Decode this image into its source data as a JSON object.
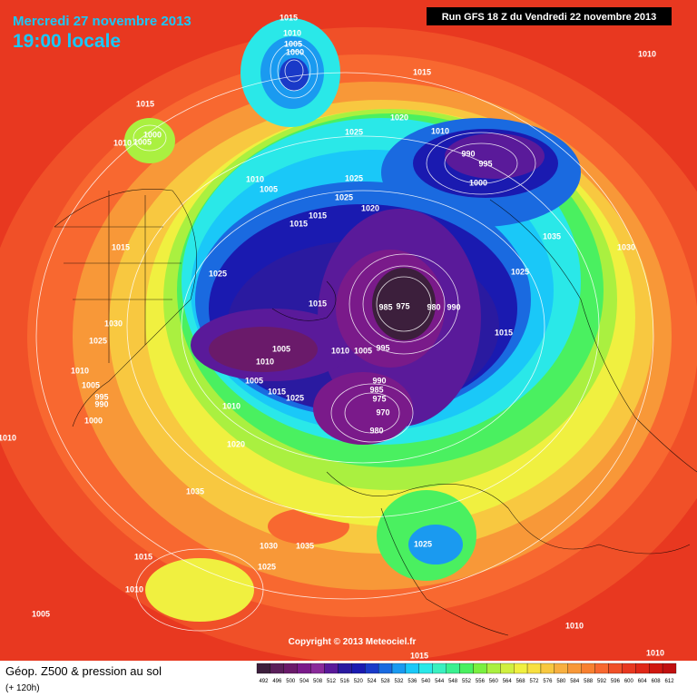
{
  "header": {
    "date": "Mercredi 27 novembre 2013",
    "time": "19:00 locale",
    "run": "Run GFS 18 Z du Vendredi 22 novembre 2013"
  },
  "copyright": "Copyright © 2013 Meteociel.fr",
  "footer": {
    "title": "Géop. Z500 & pression au sol",
    "subtitle": "(+ 120h)"
  },
  "isobar_labels": [
    1015,
    1010,
    1005,
    1000,
    1015,
    1010,
    1015,
    1000,
    1010,
    1005,
    1020,
    1025,
    1010,
    990,
    995,
    1000,
    1010,
    1005,
    1025,
    1025,
    1020,
    1015,
    1015,
    1035,
    1030,
    1015,
    1025,
    1025,
    1015,
    985,
    975,
    980,
    990,
    1030,
    1025,
    1015,
    1005,
    1010,
    1005,
    995,
    1010,
    1010,
    1005,
    990,
    985,
    975,
    1005,
    995,
    990,
    1015,
    1025,
    1010,
    970,
    980,
    1000,
    1010,
    1020,
    1035,
    1030,
    1035,
    1025,
    1015,
    1025,
    1010,
    1005,
    1010,
    1010,
    1015
  ],
  "legend": {
    "values": [
      492,
      496,
      500,
      504,
      508,
      512,
      516,
      520,
      524,
      528,
      532,
      536,
      540,
      544,
      548,
      552,
      556,
      560,
      564,
      568,
      572,
      576,
      580,
      584,
      588,
      592,
      596,
      600,
      604,
      608,
      612
    ],
    "colors": [
      "#3c1f3c",
      "#5a1f5a",
      "#6a1a6a",
      "#7a1a8a",
      "#8a2a9a",
      "#5a1a9a",
      "#2a1aa0",
      "#1a1ab0",
      "#1a3ac8",
      "#1a6ae0",
      "#1a9af0",
      "#1ac8f8",
      "#2ae8e8",
      "#3af0c0",
      "#3af090",
      "#4af060",
      "#7af040",
      "#aaf040",
      "#d0f040",
      "#f0f040",
      "#f8e040",
      "#f8c840",
      "#f8b040",
      "#f89838",
      "#f88030",
      "#f86830",
      "#f05028",
      "#e83820",
      "#e02818",
      "#d01810",
      "#c01010"
    ]
  }
}
